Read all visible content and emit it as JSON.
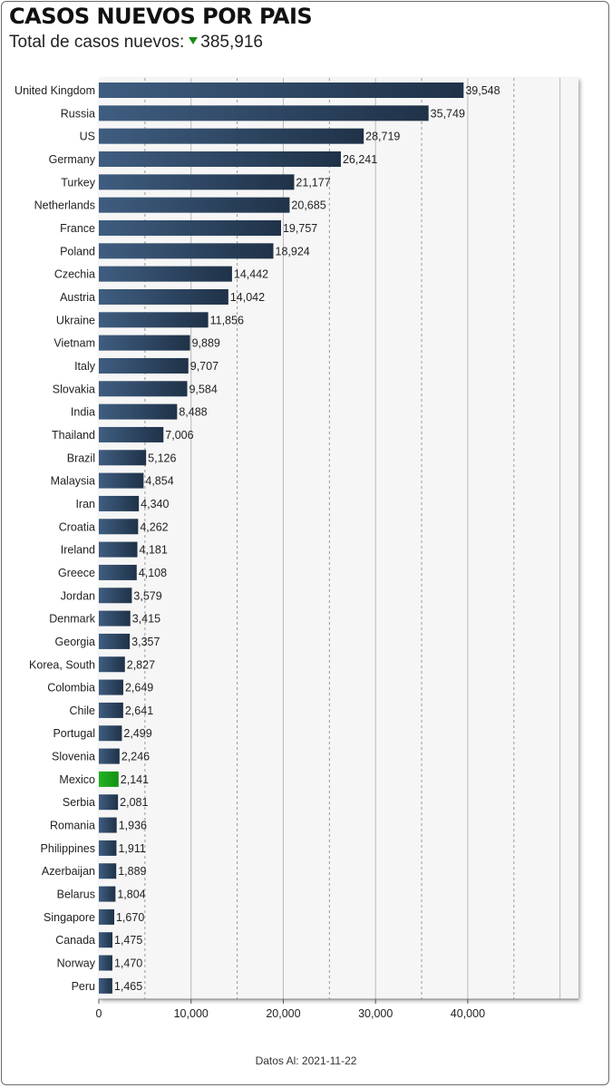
{
  "header": {
    "title": "CASOS NUEVOS POR PAIS",
    "subtitle_prefix": "Total de casos nuevos:",
    "subtitle_value": "385,916",
    "indicator_icon": "down-triangle-icon",
    "indicator_color": "#1a8a1a"
  },
  "footer": {
    "text": "Datos Al: 2021-11-22"
  },
  "chart_data": {
    "type": "bar",
    "orientation": "horizontal",
    "title": "CASOS NUEVOS POR PAIS",
    "xlabel": "",
    "ylabel": "",
    "xlim": [
      0,
      52000
    ],
    "xticks": [
      0,
      10000,
      20000,
      30000,
      40000
    ],
    "xtick_labels": [
      "0",
      "10,000",
      "20,000",
      "30,000",
      "40,000"
    ],
    "grid": true,
    "bar_color": "#2e4662",
    "highlight_color": "#1fa51f",
    "highlight_category": "Mexico",
    "categories": [
      "United Kingdom",
      "Russia",
      "US",
      "Germany",
      "Turkey",
      "Netherlands",
      "France",
      "Poland",
      "Czechia",
      "Austria",
      "Ukraine",
      "Vietnam",
      "Italy",
      "Slovakia",
      "India",
      "Thailand",
      "Brazil",
      "Malaysia",
      "Iran",
      "Croatia",
      "Ireland",
      "Greece",
      "Jordan",
      "Denmark",
      "Georgia",
      "Korea, South",
      "Colombia",
      "Chile",
      "Portugal",
      "Slovenia",
      "Mexico",
      "Serbia",
      "Romania",
      "Philippines",
      "Azerbaijan",
      "Belarus",
      "Singapore",
      "Canada",
      "Norway",
      "Peru"
    ],
    "values": [
      39548,
      35749,
      28719,
      26241,
      21177,
      20685,
      19757,
      18924,
      14442,
      14042,
      11856,
      9889,
      9707,
      9584,
      8488,
      7006,
      5126,
      4854,
      4340,
      4262,
      4181,
      4108,
      3579,
      3415,
      3357,
      2827,
      2649,
      2641,
      2499,
      2246,
      2141,
      2081,
      1936,
      1911,
      1889,
      1804,
      1670,
      1475,
      1470,
      1465
    ],
    "value_labels": [
      "39,548",
      "35,749",
      "28,719",
      "26,241",
      "21,177",
      "20,685",
      "19,757",
      "18,924",
      "14,442",
      "14,042",
      "11,856",
      "9,889",
      "9,707",
      "9,584",
      "8,488",
      "7,006",
      "5,126",
      "4,854",
      "4,340",
      "4,262",
      "4,181",
      "4,108",
      "3,579",
      "3,415",
      "3,357",
      "2,827",
      "2,649",
      "2,641",
      "2,499",
      "2,246",
      "2,141",
      "2,081",
      "1,936",
      "1,911",
      "1,889",
      "1,804",
      "1,670",
      "1,475",
      "1,470",
      "1,465"
    ]
  }
}
